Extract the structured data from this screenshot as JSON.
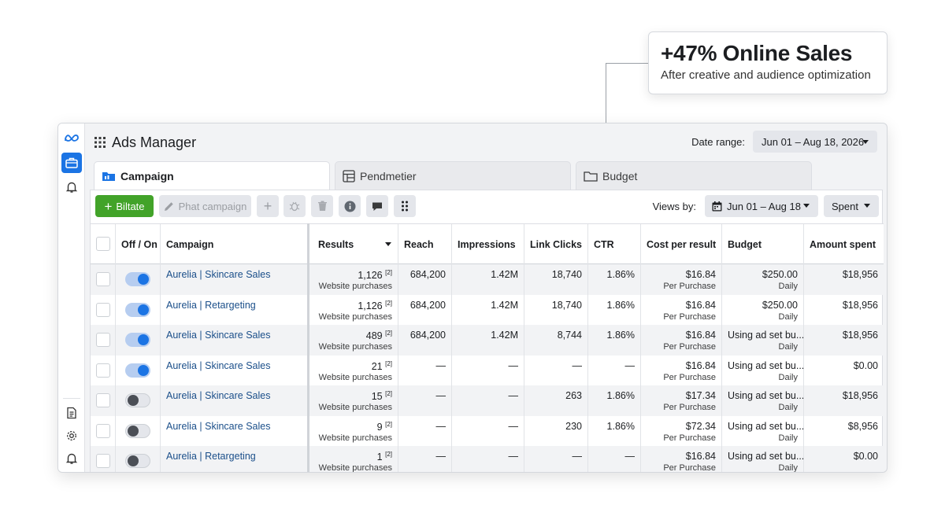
{
  "callout": {
    "title": "+47% Online Sales",
    "subtitle": "After creative and audience optimization"
  },
  "app": {
    "title": "Ads Manager",
    "date_label": "Date range:",
    "date_value": "Jun 01 – Aug 18, 2026"
  },
  "sidebar": {
    "icons": [
      "meta-logo-icon",
      "briefcase-icon",
      "bell-icon",
      "report-icon",
      "gear-icon",
      "bell-icon"
    ]
  },
  "tabs": [
    {
      "label": "Campaign",
      "icon": "campaign-folder-icon",
      "active": true
    },
    {
      "label": "Pendmetier",
      "icon": "table-icon",
      "active": false
    },
    {
      "label": "Budget",
      "icon": "folder-icon",
      "active": false
    }
  ],
  "toolbar": {
    "create_label": "Biltate",
    "edit_label": "Phat campaign",
    "views_label": "Views by:",
    "views_date": "Jun 01 – Aug 18",
    "metric_select": "Spent"
  },
  "columns": {
    "onoff": "Off / On",
    "campaign": "Campaign",
    "results": "Results",
    "reach": "Reach",
    "impressions": "Impressions",
    "link_clicks": "Link Clicks",
    "ctr": "CTR",
    "cost": "Cost per result",
    "budget": "Budget",
    "spent": "Amount spent"
  },
  "rows": [
    {
      "on": true,
      "campaign": "Aurelia | Skincare Sales",
      "results": "1,126",
      "note": "[2]",
      "results_sub": "Website purchases",
      "reach": "684,200",
      "impressions": "1.42M",
      "clicks": "18,740",
      "ctr": "1.86%",
      "cost": "$16.84",
      "cost_sub": "Per Purchase",
      "budget": "$250.00",
      "budget_sub": "Daily",
      "spent": "$18,956"
    },
    {
      "on": true,
      "campaign": "Aurelia | Retargeting",
      "results": "1,126",
      "note": "[2]",
      "results_sub": "Website purchases",
      "reach": "684,200",
      "impressions": "1.42M",
      "clicks": "18,740",
      "ctr": "1.86%",
      "cost": "$16.84",
      "cost_sub": "Per Purchase",
      "budget": "$250.00",
      "budget_sub": "Daily",
      "spent": "$18,956"
    },
    {
      "on": true,
      "campaign": "Aurelia | Skincare Sales",
      "results": "489",
      "note": "[2]",
      "results_sub": "Website purchases",
      "reach": "684,200",
      "impressions": "1.42M",
      "clicks": "8,744",
      "ctr": "1.86%",
      "cost": "$16.84",
      "cost_sub": "Per Purchase",
      "budget": "Using ad set bu...",
      "budget_sub": "Daily",
      "spent": "$18,956"
    },
    {
      "on": true,
      "campaign": "Aurelia | Skincare Sales",
      "results": "21",
      "note": "[2]",
      "results_sub": "Website purchases",
      "reach": "—",
      "impressions": "—",
      "clicks": "—",
      "ctr": "—",
      "cost": "$16.84",
      "cost_sub": "Per Purchase",
      "budget": "Using ad set bu...",
      "budget_sub": "Daily",
      "spent": "$0.00"
    },
    {
      "on": false,
      "campaign": "Aurelia | Skincare Sales",
      "results": "15",
      "note": "[2]",
      "results_sub": "Website purchases",
      "reach": "—",
      "impressions": "—",
      "clicks": "263",
      "ctr": "1.86%",
      "cost": "$17.34",
      "cost_sub": "Per Purchase",
      "budget": "Using ad set bu...",
      "budget_sub": "Daily",
      "spent": "$18,956"
    },
    {
      "on": false,
      "campaign": "Aurelia | Skincare Sales",
      "results": "9",
      "note": "[2]",
      "results_sub": "Website purchases",
      "reach": "—",
      "impressions": "—",
      "clicks": "230",
      "ctr": "1.86%",
      "cost": "$72.34",
      "cost_sub": "Per Purchase",
      "budget": "Using ad set bu...",
      "budget_sub": "Daily",
      "spent": "$8,956"
    },
    {
      "on": false,
      "campaign": "Aurelia | Retargeting",
      "results": "1",
      "note": "[2]",
      "results_sub": "Website purchases",
      "reach": "—",
      "impressions": "—",
      "clicks": "—",
      "ctr": "—",
      "cost": "$16.84",
      "cost_sub": "Per Purchase",
      "budget": "Using ad set bu...",
      "budget_sub": "Daily",
      "spent": "$0.00"
    }
  ]
}
